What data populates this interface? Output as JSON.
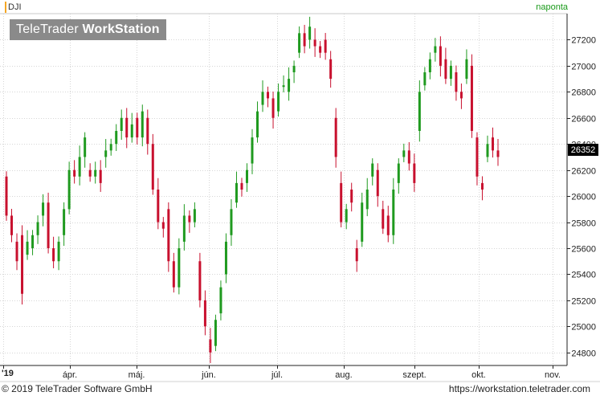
{
  "header": {
    "ticker": "DJI",
    "interval": "naponta"
  },
  "watermark": {
    "brand_light": "TeleTrader",
    "brand_bold": "WorkStation"
  },
  "footer": {
    "copyright": "© 2019 TeleTrader Software GmbH",
    "url": "https://workstation.teletrader.com"
  },
  "x_axis": {
    "year_label": "'19",
    "months": [
      "ápr.",
      "máj.",
      "jún.",
      "júl.",
      "aug.",
      "szept.",
      "okt.",
      "nov."
    ]
  },
  "colors": {
    "up": "#1f9a1f",
    "down": "#c8102e",
    "grid": "#d6d6d6",
    "last_price_bg": "#000000",
    "last_price_fg": "#ffffff"
  },
  "chart_data": {
    "type": "candlestick",
    "ticker": "DJI",
    "y_ticks": [
      24800,
      25000,
      25200,
      25400,
      25600,
      25800,
      26000,
      26200,
      26400,
      26600,
      26800,
      27000,
      27200
    ],
    "ylim": [
      24700,
      27400
    ],
    "x_tick_labels": [
      "'19",
      "ápr.",
      "máj.",
      "jún.",
      "júl.",
      "aug.",
      "szept.",
      "okt.",
      "nov."
    ],
    "last_price": "26352",
    "grid": true,
    "candles": [
      [
        26150,
        25850
      ],
      [
        25850,
        25700
      ],
      [
        25650,
        25500
      ],
      [
        25700,
        25250
      ],
      [
        25550,
        25650
      ],
      [
        25600,
        25700
      ],
      [
        25700,
        25800
      ],
      [
        25850,
        25950
      ],
      [
        25950,
        25600
      ],
      [
        25600,
        25500
      ],
      [
        25500,
        25650
      ],
      [
        25700,
        25900
      ],
      [
        25900,
        26200
      ],
      [
        26200,
        26150
      ],
      [
        26150,
        26300
      ],
      [
        26300,
        26450
      ],
      [
        26200,
        26150
      ],
      [
        26150,
        26200
      ],
      [
        26200,
        26100
      ],
      [
        26300,
        26350
      ],
      [
        26350,
        26400
      ],
      [
        26400,
        26500
      ],
      [
        26500,
        26600
      ],
      [
        26600,
        26450
      ],
      [
        26450,
        26550
      ],
      [
        26600,
        26450
      ],
      [
        26450,
        26650
      ],
      [
        26600,
        26400
      ],
      [
        26400,
        26050
      ],
      [
        26050,
        25800
      ],
      [
        25800,
        25750
      ],
      [
        25900,
        25500
      ],
      [
        25500,
        25300
      ],
      [
        25300,
        25600
      ],
      [
        25650,
        25850
      ],
      [
        25850,
        25800
      ],
      [
        25800,
        25900
      ],
      [
        25500,
        25200
      ],
      [
        25200,
        25000
      ],
      [
        24900,
        24800
      ],
      [
        24850,
        25050
      ],
      [
        25100,
        25300
      ],
      [
        25400,
        25650
      ],
      [
        25700,
        25900
      ],
      [
        25950,
        26100
      ],
      [
        26100,
        26050
      ],
      [
        26100,
        26200
      ],
      [
        26250,
        26450
      ],
      [
        26450,
        26650
      ],
      [
        26700,
        26800
      ],
      [
        26800,
        26750
      ],
      [
        26750,
        26600
      ],
      [
        26650,
        26800
      ],
      [
        26850,
        26850
      ],
      [
        26800,
        26900
      ],
      [
        26950,
        27000
      ],
      [
        27100,
        27250
      ],
      [
        27250,
        27150
      ],
      [
        27200,
        27300
      ],
      [
        27200,
        27150
      ],
      [
        27150,
        27100
      ],
      [
        27200,
        27100
      ],
      [
        27050,
        26900
      ],
      [
        26600,
        26300
      ],
      [
        26100,
        25800
      ],
      [
        25800,
        25900
      ],
      [
        26050,
        25950
      ],
      [
        25600,
        25500
      ],
      [
        25650,
        25950
      ],
      [
        25900,
        26050
      ],
      [
        26150,
        26250
      ],
      [
        26200,
        26000
      ],
      [
        25900,
        25750
      ],
      [
        25850,
        25700
      ],
      [
        25700,
        26050
      ],
      [
        26100,
        26250
      ],
      [
        26300,
        26350
      ],
      [
        26350,
        26250
      ],
      [
        26250,
        26100
      ],
      [
        26500,
        26800
      ],
      [
        26850,
        26950
      ],
      [
        26950,
        27050
      ],
      [
        27100,
        27150
      ],
      [
        27150,
        27000
      ],
      [
        27050,
        26900
      ],
      [
        26900,
        27000
      ],
      [
        26950,
        26800
      ],
      [
        26800,
        26750
      ],
      [
        26900,
        27050
      ],
      [
        27000,
        26500
      ],
      [
        26450,
        26150
      ],
      [
        26100,
        26050
      ],
      [
        26300,
        26400
      ],
      [
        26450,
        26350
      ],
      [
        26350,
        26300
      ]
    ]
  }
}
